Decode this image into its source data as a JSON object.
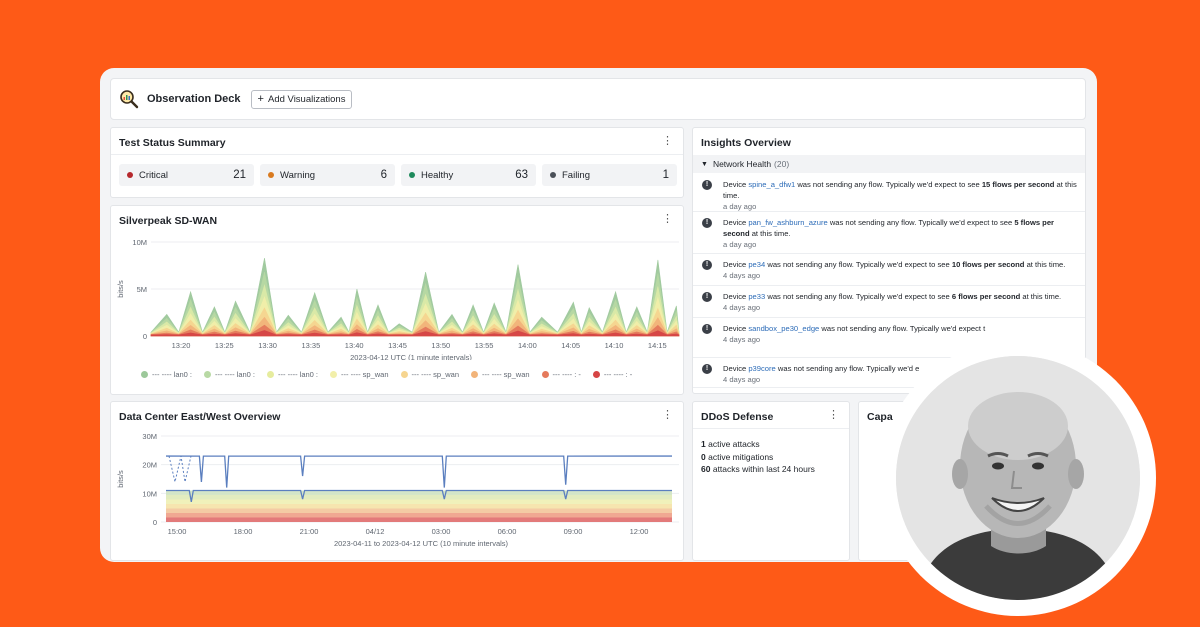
{
  "header": {
    "title": "Observation Deck",
    "add_label": "Add Visualizations",
    "icon": "magnifier-icon"
  },
  "test_status": {
    "title": "Test Status Summary",
    "cards": [
      {
        "label": "Critical",
        "value": "21",
        "color": "#b5282d"
      },
      {
        "label": "Warning",
        "value": "6",
        "color": "#d97a1f"
      },
      {
        "label": "Healthy",
        "value": "63",
        "color": "#1e8a5c"
      },
      {
        "label": "Failing",
        "value": "1",
        "color": "#4a5058"
      }
    ]
  },
  "sdwan": {
    "title": "Silverpeak SD-WAN",
    "ylabel": "bits/s",
    "xlabel": "2023-04-12 UTC (1 minute intervals)",
    "legend": [
      {
        "label": "--- ---- lan0 :",
        "color": "#9cc89a"
      },
      {
        "label": "--- ---- lan0 :",
        "color": "#b8d9a4"
      },
      {
        "label": "--- ---- lan0 :",
        "color": "#e6ec9e"
      },
      {
        "label": "--- ---- sp_wan",
        "color": "#f2efaa"
      },
      {
        "label": "--- ---- sp_wan",
        "color": "#f6d590"
      },
      {
        "label": "--- ---- sp_wan",
        "color": "#f2b47a"
      },
      {
        "label": "--- ---- : -",
        "color": "#e57a5c"
      },
      {
        "label": "--- ---- : -",
        "color": "#d64545"
      }
    ]
  },
  "dc": {
    "title": "Data Center East/West Overview",
    "ylabel": "bits/s",
    "xlabel": "2023-04-11 to 2023-04-12 UTC (10 minute intervals)"
  },
  "insights": {
    "title": "Insights Overview",
    "section_label": "Network Health",
    "section_count": "(20)",
    "items": [
      {
        "pre": "Device ",
        "device": "spine_a_dfw1",
        "mid": " was not sending any flow. Typically we'd expect to see ",
        "bold": "15 flows per second",
        "post": " at this time.",
        "ago": "a day ago"
      },
      {
        "pre": "Device ",
        "device": "pan_fw_ashburn_azure",
        "mid": " was not sending any flow. Typically we'd expect to see ",
        "bold": "5 flows per second",
        "post": " at this time.",
        "ago": "a day ago"
      },
      {
        "pre": "Device ",
        "device": "pe34",
        "mid": " was not sending any flow. Typically we'd expect to see ",
        "bold": "10 flows per second",
        "post": " at this time.",
        "ago": "4 days ago"
      },
      {
        "pre": "Device ",
        "device": "pe33",
        "mid": " was not sending any flow. Typically we'd expect to see ",
        "bold": "6 flows per second",
        "post": " at this time.",
        "ago": "4 days ago"
      },
      {
        "pre": "Device ",
        "device": "sandbox_pe30_edge",
        "mid": " was not sending any flow. Typically we'd expect t",
        "bold": "",
        "post": "",
        "ago": "4 days ago"
      },
      {
        "pre": "Device ",
        "device": "p39core",
        "mid": " was not sending any flow. Typically we'd e",
        "bold": "",
        "post": "",
        "ago": "4 days ago"
      }
    ]
  },
  "ddos": {
    "title": "DDoS Defense",
    "lines": [
      {
        "num": "1",
        "text": "active attacks"
      },
      {
        "num": "0",
        "text": "active mitigations"
      },
      {
        "num": "60",
        "text": "attacks within last 24 hours"
      }
    ]
  },
  "capacity": {
    "title": "Capa"
  },
  "chart_data": [
    {
      "type": "area",
      "title": "Silverpeak SD-WAN",
      "xlabel": "2023-04-12 UTC (1 minute intervals)",
      "ylabel": "bits/s",
      "y_ticks": [
        "10M",
        "5M",
        "0"
      ],
      "x_ticks": [
        "13:20",
        "13:25",
        "13:30",
        "13:35",
        "13:40",
        "13:45",
        "13:50",
        "13:55",
        "14:00",
        "14:05",
        "14:10",
        "14:15"
      ],
      "ylim": [
        0,
        10000000
      ],
      "grid": true,
      "peaks": [
        {
          "x": 0.03,
          "y": 2300000
        },
        {
          "x": 0.075,
          "y": 4700000
        },
        {
          "x": 0.12,
          "y": 3100000
        },
        {
          "x": 0.16,
          "y": 3700000
        },
        {
          "x": 0.215,
          "y": 8300000
        },
        {
          "x": 0.26,
          "y": 2200000
        },
        {
          "x": 0.31,
          "y": 4600000
        },
        {
          "x": 0.36,
          "y": 2000000
        },
        {
          "x": 0.39,
          "y": 5000000
        },
        {
          "x": 0.43,
          "y": 3300000
        },
        {
          "x": 0.47,
          "y": 1300000
        },
        {
          "x": 0.52,
          "y": 6800000
        },
        {
          "x": 0.57,
          "y": 2300000
        },
        {
          "x": 0.61,
          "y": 3300000
        },
        {
          "x": 0.65,
          "y": 3500000
        },
        {
          "x": 0.695,
          "y": 7600000
        },
        {
          "x": 0.74,
          "y": 2000000
        },
        {
          "x": 0.8,
          "y": 3600000
        },
        {
          "x": 0.83,
          "y": 3000000
        },
        {
          "x": 0.88,
          "y": 4700000
        },
        {
          "x": 0.92,
          "y": 3100000
        },
        {
          "x": 0.96,
          "y": 8100000
        },
        {
          "x": 0.995,
          "y": 3200000
        }
      ]
    },
    {
      "type": "line",
      "title": "Data Center East/West Overview",
      "xlabel": "2023-04-11 to 2023-04-12 UTC (10 minute intervals)",
      "ylabel": "bits/s",
      "y_ticks": [
        "30M",
        "20M",
        "10M",
        "0"
      ],
      "x_ticks": [
        "15:00",
        "18:00",
        "21:00",
        "04/12",
        "03:00",
        "06:00",
        "09:00",
        "12:00"
      ],
      "ylim": [
        0,
        30000000
      ],
      "series": [
        {
          "values_baseline": 23000000,
          "dips": [
            {
              "x": 0.07,
              "y": 14000000
            },
            {
              "x": 0.12,
              "y": 12000000
            },
            {
              "x": 0.27,
              "y": 16000000
            },
            {
              "x": 0.55,
              "y": 12000000
            },
            {
              "x": 0.79,
              "y": 13000000
            }
          ],
          "color": "#5b7fbf"
        },
        {
          "values_baseline": 11000000,
          "dips": [
            {
              "x": 0.05,
              "y": 7000000
            },
            {
              "x": 0.27,
              "y": 8000000
            },
            {
              "x": 0.55,
              "y": 8000000
            },
            {
              "x": 0.79,
              "y": 8000000
            }
          ],
          "color": "#5b7fbf"
        }
      ]
    }
  ]
}
